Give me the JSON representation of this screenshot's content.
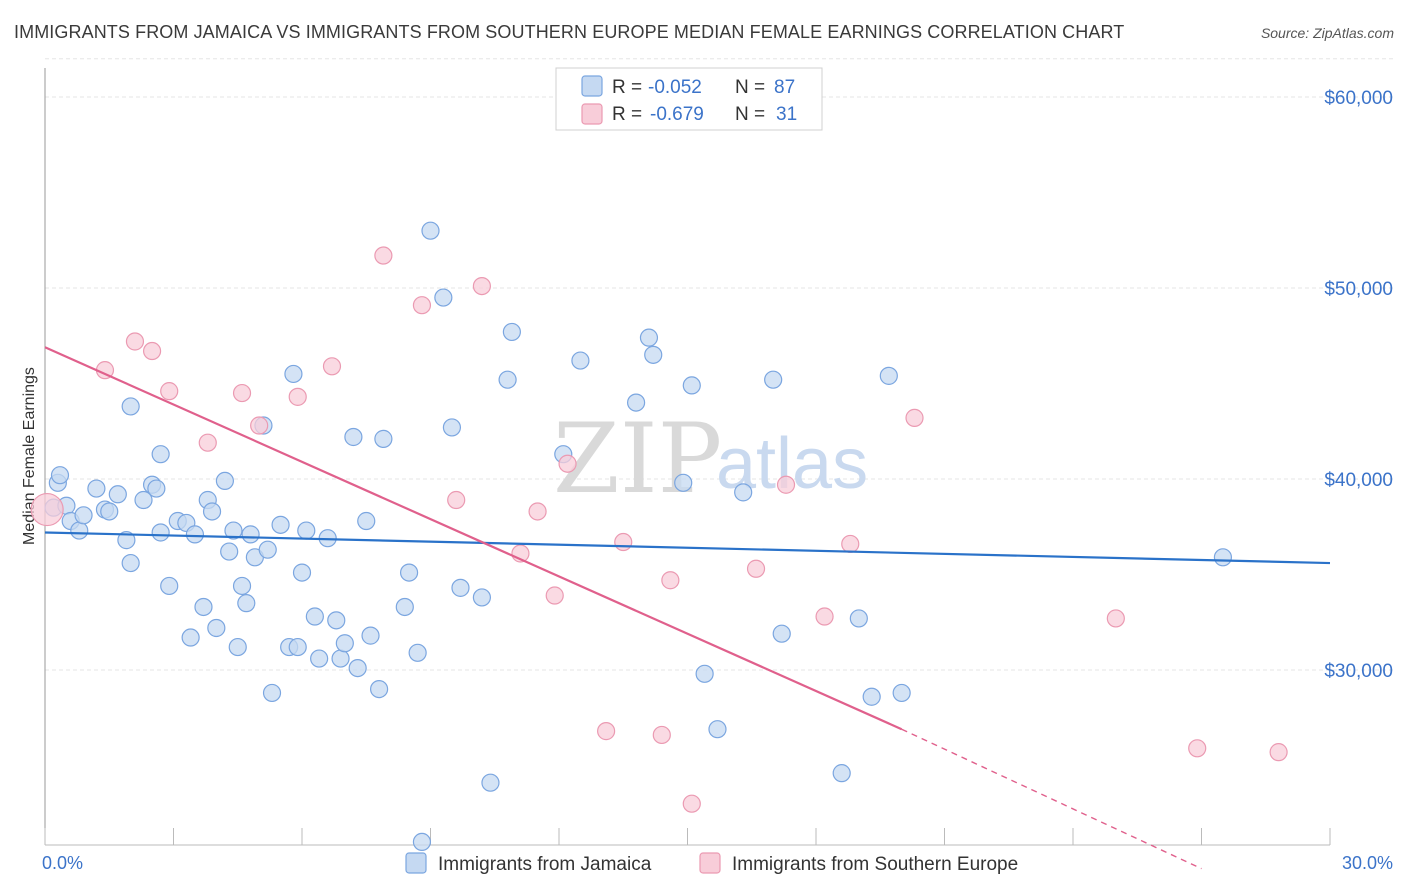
{
  "title": "IMMIGRANTS FROM JAMAICA VS IMMIGRANTS FROM SOUTHERN EUROPE MEDIAN FEMALE EARNINGS CORRELATION CHART",
  "source": "Source: ZipAtlas.com",
  "watermark": {
    "zip": "ZIP",
    "atlas": "atlas"
  },
  "legend": {
    "r_label": "R =",
    "n_label": "N =",
    "rows": [
      {
        "series": "Immigrants from Jamaica",
        "r": "-0.052",
        "n": "87"
      },
      {
        "series": "Immigrants from Southern Europe",
        "r": "-0.679",
        "n": "31"
      }
    ]
  },
  "colors": {
    "jamaica_fill": "#c5d9f2",
    "jamaica_stroke": "#7ba6e0",
    "jamaica_line": "#2a72c9",
    "europe_fill": "#f8cdd9",
    "europe_stroke": "#eb9ab2",
    "europe_line": "#e0608c",
    "tick_text": "#3b73c9"
  },
  "chart_data": {
    "type": "scatter",
    "title": "IMMIGRANTS FROM JAMAICA VS IMMIGRANTS FROM SOUTHERN EUROPE MEDIAN FEMALE EARNINGS CORRELATION CHART",
    "xlabel": "",
    "ylabel": "Median Female Earnings",
    "xlim": [
      0,
      30
    ],
    "ylim": [
      20000,
      62000
    ],
    "x_tick_labels": [
      "0.0%",
      "30.0%"
    ],
    "y_ticks": [
      30000,
      40000,
      50000,
      60000
    ],
    "y_tick_labels": [
      "$30,000",
      "$40,000",
      "$50,000",
      "$60,000"
    ],
    "grid": true,
    "series": [
      {
        "name": "Immigrants from Jamaica",
        "r": -0.052,
        "n": 87,
        "trend": {
          "x": [
            0,
            30
          ],
          "y": [
            37200,
            35600
          ],
          "dashed_from": null
        },
        "points": [
          [
            0.2,
            38500
          ],
          [
            0.3,
            39800
          ],
          [
            0.35,
            40200
          ],
          [
            0.5,
            38600
          ],
          [
            0.6,
            37800
          ],
          [
            0.8,
            37300
          ],
          [
            0.9,
            38100
          ],
          [
            1.2,
            39500
          ],
          [
            1.4,
            38400
          ],
          [
            1.5,
            38300
          ],
          [
            1.7,
            39200
          ],
          [
            1.9,
            36800
          ],
          [
            2.0,
            35600
          ],
          [
            2.0,
            43800
          ],
          [
            2.3,
            38900
          ],
          [
            2.5,
            39700
          ],
          [
            2.6,
            39500
          ],
          [
            2.7,
            41300
          ],
          [
            2.7,
            37200
          ],
          [
            2.9,
            34400
          ],
          [
            3.1,
            37800
          ],
          [
            3.3,
            37700
          ],
          [
            3.4,
            31700
          ],
          [
            3.5,
            37100
          ],
          [
            3.7,
            33300
          ],
          [
            3.8,
            38900
          ],
          [
            3.9,
            38300
          ],
          [
            4.0,
            32200
          ],
          [
            4.2,
            39900
          ],
          [
            4.3,
            36200
          ],
          [
            4.4,
            37300
          ],
          [
            4.5,
            31200
          ],
          [
            4.6,
            34400
          ],
          [
            4.7,
            33500
          ],
          [
            4.8,
            37100
          ],
          [
            4.9,
            35900
          ],
          [
            5.1,
            42800
          ],
          [
            5.2,
            36300
          ],
          [
            5.3,
            28800
          ],
          [
            5.5,
            37600
          ],
          [
            5.7,
            31200
          ],
          [
            5.8,
            45500
          ],
          [
            5.9,
            31200
          ],
          [
            6.0,
            35100
          ],
          [
            6.1,
            37300
          ],
          [
            6.3,
            32800
          ],
          [
            6.4,
            30600
          ],
          [
            6.6,
            36900
          ],
          [
            6.8,
            32600
          ],
          [
            6.9,
            30600
          ],
          [
            7.0,
            31400
          ],
          [
            7.2,
            42200
          ],
          [
            7.3,
            30100
          ],
          [
            7.5,
            37800
          ],
          [
            7.6,
            31800
          ],
          [
            7.8,
            29000
          ],
          [
            7.9,
            42100
          ],
          [
            8.4,
            33300
          ],
          [
            8.5,
            35100
          ],
          [
            8.7,
            30900
          ],
          [
            8.8,
            21000
          ],
          [
            9.0,
            53000
          ],
          [
            9.3,
            49500
          ],
          [
            9.5,
            42700
          ],
          [
            9.7,
            34300
          ],
          [
            10.2,
            33800
          ],
          [
            10.4,
            24100
          ],
          [
            10.8,
            45200
          ],
          [
            10.9,
            47700
          ],
          [
            12.1,
            41300
          ],
          [
            12.5,
            46200
          ],
          [
            13.8,
            44000
          ],
          [
            14.1,
            47400
          ],
          [
            14.2,
            46500
          ],
          [
            14.9,
            39800
          ],
          [
            15.1,
            44900
          ],
          [
            15.4,
            29800
          ],
          [
            15.7,
            26900
          ],
          [
            16.3,
            39300
          ],
          [
            17.0,
            45200
          ],
          [
            17.2,
            31900
          ],
          [
            18.6,
            24600
          ],
          [
            19.0,
            32700
          ],
          [
            19.3,
            28600
          ],
          [
            19.7,
            45400
          ],
          [
            20.0,
            28800
          ],
          [
            27.5,
            35900
          ]
        ]
      },
      {
        "name": "Immigrants from Southern Europe",
        "r": -0.679,
        "n": 31,
        "trend": {
          "x": [
            0,
            20
          ],
          "y": [
            46900,
            26900
          ],
          "dashed_to": [
            27,
            19600
          ]
        },
        "points": [
          [
            0.05,
            38400
          ],
          [
            1.4,
            45700
          ],
          [
            2.1,
            47200
          ],
          [
            2.5,
            46700
          ],
          [
            2.9,
            44600
          ],
          [
            3.8,
            41900
          ],
          [
            4.6,
            44500
          ],
          [
            5.0,
            42800
          ],
          [
            5.9,
            44300
          ],
          [
            6.7,
            45900
          ],
          [
            7.9,
            51700
          ],
          [
            8.8,
            49100
          ],
          [
            9.6,
            38900
          ],
          [
            10.2,
            50100
          ],
          [
            11.1,
            36100
          ],
          [
            11.5,
            38300
          ],
          [
            12.2,
            40800
          ],
          [
            13.1,
            26800
          ],
          [
            13.5,
            36700
          ],
          [
            14.4,
            26600
          ],
          [
            14.6,
            34700
          ],
          [
            15.1,
            23000
          ],
          [
            16.6,
            35300
          ],
          [
            17.3,
            39700
          ],
          [
            18.2,
            32800
          ],
          [
            18.8,
            36600
          ],
          [
            20.3,
            43200
          ],
          [
            25.0,
            32700
          ],
          [
            26.9,
            25900
          ],
          [
            28.8,
            25700
          ],
          [
            11.9,
            33900
          ]
        ]
      }
    ]
  }
}
